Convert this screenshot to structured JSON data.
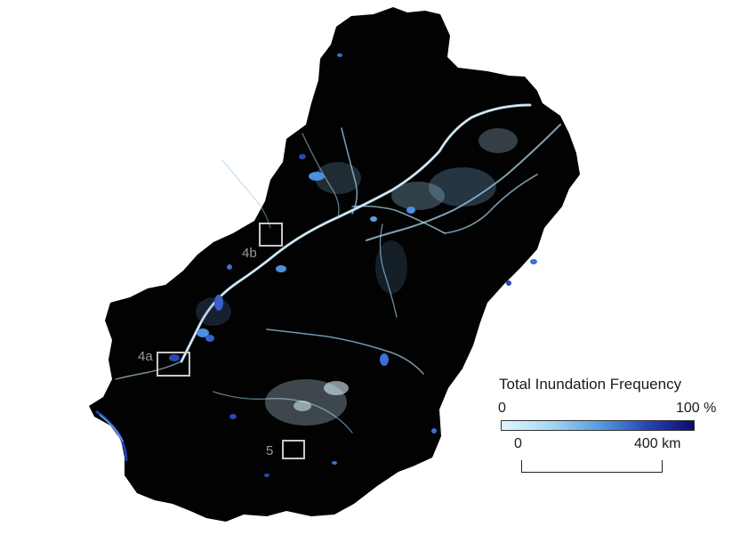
{
  "map": {
    "inset_labels": {
      "a": "4a",
      "b": "4b",
      "c": "5"
    },
    "colors": {
      "background": "#ffffff",
      "basin": "#020202",
      "water_low": "#cfeeff",
      "water_mid": "#4a8fe0",
      "water_high": "#1a2aa0",
      "inset_box": "#c8c8c8"
    }
  },
  "legend": {
    "title": "Total Inundation Frequency",
    "min_label": "0",
    "max_label": "100 %",
    "gradient_colors": [
      "#e4f6ff",
      "#a6d8f2",
      "#5a9ee0",
      "#2848b8",
      "#0a0c6c"
    ]
  },
  "scale": {
    "zero_label": "0",
    "distance_label": "400 km"
  }
}
